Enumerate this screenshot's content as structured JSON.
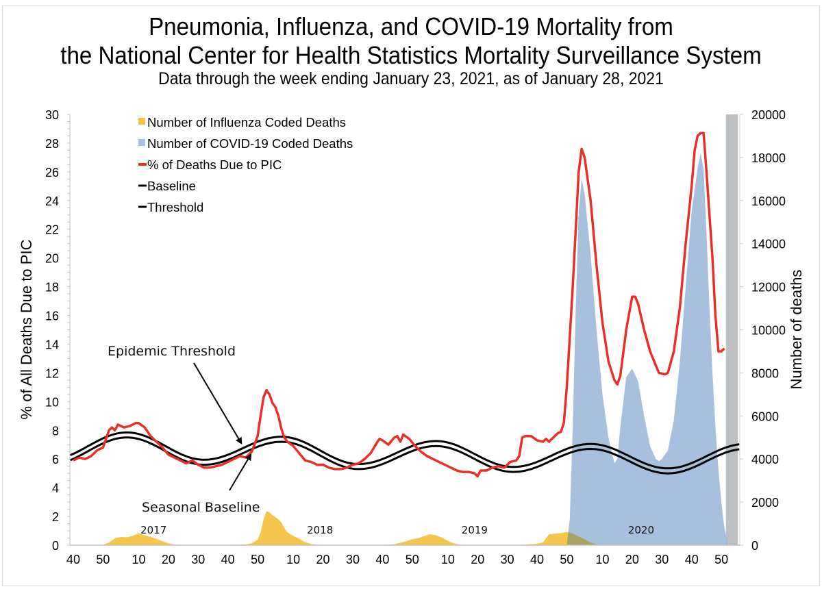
{
  "title": {
    "line1": "Pneumonia, Influenza, and COVID-19 Mortality from",
    "line2": "the National Center for Health Statistics Mortality Surveillance System",
    "subtitle": "Data through the week ending January 23, 2021, as of January 28, 2021"
  },
  "colors": {
    "influenza": "#f5c242",
    "covid": "#a7c0de",
    "pic_line": "#e8302a",
    "baseline": "#000000",
    "threshold": "#000000",
    "shaded": "#cfcfcf",
    "overlap": "#a8a560"
  },
  "chart_data": {
    "type": "area",
    "title": "Pneumonia, Influenza, and COVID-19 Mortality from the National Center for Health Statistics Mortality Surveillance System",
    "subtitle": "Data through the week ending January 23, 2021, as of January 28, 2021",
    "xlabel": "",
    "ylabel": "% of All Deaths Due to PIC",
    "y2label": "Number of deaths",
    "ylim": [
      0,
      30
    ],
    "y2lim": [
      0,
      20000
    ],
    "yticks": [
      "0",
      "2",
      "4",
      "6",
      "8",
      "10",
      "12",
      "14",
      "16",
      "18",
      "20",
      "22",
      "24",
      "26",
      "28",
      "30"
    ],
    "y2ticks": [
      "0",
      "2000",
      "4000",
      "6000",
      "8000",
      "10000",
      "12000",
      "14000",
      "16000",
      "18000",
      "20000"
    ],
    "xticks": [
      "40",
      "50",
      "10",
      "20",
      "30",
      "40",
      "50",
      "10",
      "20",
      "30",
      "40",
      "50",
      "10",
      "20",
      "30",
      "40",
      "50",
      "10",
      "20",
      "30",
      "40",
      "50"
    ],
    "xtick_week_index": [
      0,
      10,
      22,
      32,
      42,
      52,
      62,
      74,
      84,
      94,
      104,
      114,
      126,
      136,
      146,
      156,
      166,
      178,
      188,
      198,
      208,
      218
    ],
    "year_labels": [
      {
        "label": "2017",
        "week_index": 27
      },
      {
        "label": "2018",
        "week_index": 83
      },
      {
        "label": "2019",
        "week_index": 135
      },
      {
        "label": "2020",
        "week_index": 191
      }
    ],
    "legend": {
      "position": "top-left",
      "entries": [
        {
          "label": "Number of Influenza Coded Deaths",
          "type": "area",
          "series": "influenza"
        },
        {
          "label": "Number of COVID-19 Coded Deaths",
          "type": "area",
          "series": "covid"
        },
        {
          "label": "% of Deaths Due to PIC",
          "type": "line",
          "series": "pic"
        },
        {
          "label": "Baseline",
          "type": "line",
          "series": "baseline"
        },
        {
          "label": "Threshold",
          "type": "line",
          "series": "threshold"
        }
      ]
    },
    "annotations": [
      {
        "text": "Epidemic Threshold",
        "points_to_week_index": 57,
        "points_to_value": 6.9
      },
      {
        "text": "Seasonal Baseline",
        "points_to_week_index": 59,
        "points_to_value": 6.5
      }
    ],
    "shaded_region": {
      "from_week_index": 220,
      "to_week_index": 224,
      "meaning": "incomplete recent data"
    },
    "series": {
      "pic": {
        "name": "% of Deaths Due to PIC",
        "axis": "left",
        "points": [
          [
            0,
            5.9
          ],
          [
            2,
            6.1
          ],
          [
            4,
            6.0
          ],
          [
            6,
            6.2
          ],
          [
            8,
            6.6
          ],
          [
            10,
            6.8
          ],
          [
            12,
            8.0
          ],
          [
            13,
            8.2
          ],
          [
            14,
            8.0
          ],
          [
            15,
            8.4
          ],
          [
            17,
            8.2
          ],
          [
            19,
            8.3
          ],
          [
            21,
            8.5
          ],
          [
            22,
            8.5
          ],
          [
            24,
            8.2
          ],
          [
            26,
            7.6
          ],
          [
            28,
            7.2
          ],
          [
            30,
            6.8
          ],
          [
            32,
            6.3
          ],
          [
            34,
            6.1
          ],
          [
            36,
            5.9
          ],
          [
            38,
            5.7
          ],
          [
            40,
            5.9
          ],
          [
            42,
            5.6
          ],
          [
            44,
            5.4
          ],
          [
            46,
            5.4
          ],
          [
            48,
            5.5
          ],
          [
            50,
            5.6
          ],
          [
            52,
            5.8
          ],
          [
            54,
            6.0
          ],
          [
            56,
            6.2
          ],
          [
            58,
            6.1
          ],
          [
            60,
            6.5
          ],
          [
            62,
            7.6
          ],
          [
            63,
            9.0
          ],
          [
            64,
            10.3
          ],
          [
            65,
            10.8
          ],
          [
            66,
            10.5
          ],
          [
            67,
            9.9
          ],
          [
            68,
            9.6
          ],
          [
            69,
            9.0
          ],
          [
            70,
            8.1
          ],
          [
            71,
            7.5
          ],
          [
            72,
            7.2
          ],
          [
            74,
            6.9
          ],
          [
            76,
            6.4
          ],
          [
            78,
            5.9
          ],
          [
            80,
            5.8
          ],
          [
            82,
            5.6
          ],
          [
            84,
            5.6
          ],
          [
            86,
            5.4
          ],
          [
            88,
            5.3
          ],
          [
            90,
            5.3
          ],
          [
            92,
            5.4
          ],
          [
            94,
            5.6
          ],
          [
            96,
            5.7
          ],
          [
            98,
            6.0
          ],
          [
            100,
            6.4
          ],
          [
            102,
            7.1
          ],
          [
            103,
            7.4
          ],
          [
            104,
            7.3
          ],
          [
            106,
            7.0
          ],
          [
            108,
            7.5
          ],
          [
            109,
            7.6
          ],
          [
            110,
            7.2
          ],
          [
            111,
            7.7
          ],
          [
            113,
            7.4
          ],
          [
            115,
            6.9
          ],
          [
            117,
            6.5
          ],
          [
            119,
            6.2
          ],
          [
            121,
            6.0
          ],
          [
            123,
            5.8
          ],
          [
            125,
            5.6
          ],
          [
            127,
            5.4
          ],
          [
            129,
            5.2
          ],
          [
            131,
            5.1
          ],
          [
            133,
            5.1
          ],
          [
            135,
            5.0
          ],
          [
            136,
            4.8
          ],
          [
            137,
            5.2
          ],
          [
            139,
            5.2
          ],
          [
            141,
            5.4
          ],
          [
            143,
            5.5
          ],
          [
            145,
            5.4
          ],
          [
            147,
            5.8
          ],
          [
            149,
            5.9
          ],
          [
            150,
            6.2
          ],
          [
            151,
            7.5
          ],
          [
            152,
            7.6
          ],
          [
            154,
            7.6
          ],
          [
            156,
            7.3
          ],
          [
            158,
            7.2
          ],
          [
            159,
            7.4
          ],
          [
            160,
            7.2
          ],
          [
            161,
            7.4
          ],
          [
            163,
            7.8
          ],
          [
            164,
            7.9
          ],
          [
            165,
            8.5
          ],
          [
            166,
            11.0
          ],
          [
            167,
            14.5
          ],
          [
            168,
            18.0
          ],
          [
            169,
            22.0
          ],
          [
            170,
            26.0
          ],
          [
            171,
            27.6
          ],
          [
            172,
            27.0
          ],
          [
            174,
            24.0
          ],
          [
            176,
            19.5
          ],
          [
            178,
            15.5
          ],
          [
            180,
            12.8
          ],
          [
            182,
            11.5
          ],
          [
            183,
            11.2
          ],
          [
            184,
            11.8
          ],
          [
            186,
            15.0
          ],
          [
            188,
            17.3
          ],
          [
            189,
            17.3
          ],
          [
            190,
            16.8
          ],
          [
            192,
            15.0
          ],
          [
            194,
            13.5
          ],
          [
            196,
            12.5
          ],
          [
            197,
            12.0
          ],
          [
            199,
            11.9
          ],
          [
            200,
            12.0
          ],
          [
            202,
            13.5
          ],
          [
            204,
            16.5
          ],
          [
            206,
            21.0
          ],
          [
            208,
            25.0
          ],
          [
            209,
            27.5
          ],
          [
            210,
            28.5
          ],
          [
            211,
            28.7
          ],
          [
            212,
            28.7
          ],
          [
            213,
            26.0
          ],
          [
            215,
            20.0
          ],
          [
            216,
            16.0
          ],
          [
            217,
            13.5
          ],
          [
            218,
            13.5
          ],
          [
            219,
            13.7
          ]
        ]
      },
      "baseline": {
        "name": "Baseline",
        "axis": "left",
        "description": "sinusoid, annual period",
        "peaks": [
          [
            18,
            7.5
          ],
          [
            70,
            7.2
          ],
          [
            122,
            6.9
          ],
          [
            174,
            6.7
          ]
        ],
        "troughs": [
          [
            44,
            5.6
          ],
          [
            96,
            5.3
          ],
          [
            148,
            5.1
          ],
          [
            200,
            5.0
          ]
        ]
      },
      "threshold": {
        "name": "Threshold",
        "axis": "left",
        "description": "baseline plus ~0.35 percentage points",
        "offset": 0.35
      },
      "influenza": {
        "name": "Number of Influenza Coded Deaths",
        "axis": "right",
        "points": [
          [
            0,
            0
          ],
          [
            8,
            5
          ],
          [
            10,
            20
          ],
          [
            12,
            120
          ],
          [
            14,
            320
          ],
          [
            16,
            380
          ],
          [
            18,
            370
          ],
          [
            20,
            430
          ],
          [
            22,
            560
          ],
          [
            24,
            460
          ],
          [
            26,
            380
          ],
          [
            28,
            300
          ],
          [
            30,
            180
          ],
          [
            32,
            80
          ],
          [
            34,
            30
          ],
          [
            36,
            10
          ],
          [
            40,
            0
          ],
          [
            50,
            5
          ],
          [
            58,
            30
          ],
          [
            60,
            90
          ],
          [
            62,
            250
          ],
          [
            63,
            600
          ],
          [
            64,
            1200
          ],
          [
            65,
            1580
          ],
          [
            66,
            1520
          ],
          [
            67,
            1400
          ],
          [
            68,
            1300
          ],
          [
            69,
            1200
          ],
          [
            70,
            1050
          ],
          [
            71,
            800
          ],
          [
            72,
            600
          ],
          [
            74,
            430
          ],
          [
            76,
            300
          ],
          [
            78,
            140
          ],
          [
            80,
            50
          ],
          [
            82,
            15
          ],
          [
            86,
            0
          ],
          [
            104,
            5
          ],
          [
            108,
            40
          ],
          [
            112,
            180
          ],
          [
            114,
            280
          ],
          [
            116,
            320
          ],
          [
            118,
            420
          ],
          [
            120,
            510
          ],
          [
            122,
            460
          ],
          [
            124,
            350
          ],
          [
            126,
            200
          ],
          [
            128,
            80
          ],
          [
            130,
            20
          ],
          [
            132,
            5
          ],
          [
            150,
            10
          ],
          [
            156,
            60
          ],
          [
            158,
            130
          ],
          [
            160,
            500
          ],
          [
            162,
            540
          ],
          [
            164,
            560
          ],
          [
            166,
            610
          ],
          [
            168,
            540
          ],
          [
            170,
            400
          ],
          [
            172,
            280
          ],
          [
            174,
            120
          ],
          [
            176,
            40
          ],
          [
            178,
            10
          ],
          [
            180,
            0
          ],
          [
            224,
            0
          ]
        ]
      },
      "covid": {
        "name": "Number of COVID-19 Coded Deaths",
        "axis": "right",
        "points": [
          [
            0,
            0
          ],
          [
            166,
            0
          ],
          [
            167,
            1200
          ],
          [
            168,
            5500
          ],
          [
            169,
            11000
          ],
          [
            170,
            15500
          ],
          [
            171,
            17000
          ],
          [
            172,
            16300
          ],
          [
            174,
            13500
          ],
          [
            176,
            10000
          ],
          [
            178,
            7000
          ],
          [
            180,
            5000
          ],
          [
            182,
            3800
          ],
          [
            183,
            4000
          ],
          [
            184,
            5500
          ],
          [
            186,
            7800
          ],
          [
            188,
            8200
          ],
          [
            190,
            7600
          ],
          [
            192,
            6000
          ],
          [
            194,
            4600
          ],
          [
            196,
            4000
          ],
          [
            197,
            3900
          ],
          [
            198,
            4000
          ],
          [
            200,
            4400
          ],
          [
            202,
            5800
          ],
          [
            204,
            8500
          ],
          [
            206,
            12000
          ],
          [
            208,
            15500
          ],
          [
            210,
            17500
          ],
          [
            211,
            18200
          ],
          [
            212,
            17500
          ],
          [
            213,
            14500
          ],
          [
            214,
            11000
          ],
          [
            215,
            8000
          ],
          [
            216,
            5500
          ],
          [
            217,
            3500
          ],
          [
            218,
            2000
          ],
          [
            219,
            800
          ],
          [
            220,
            200
          ]
        ]
      }
    }
  }
}
